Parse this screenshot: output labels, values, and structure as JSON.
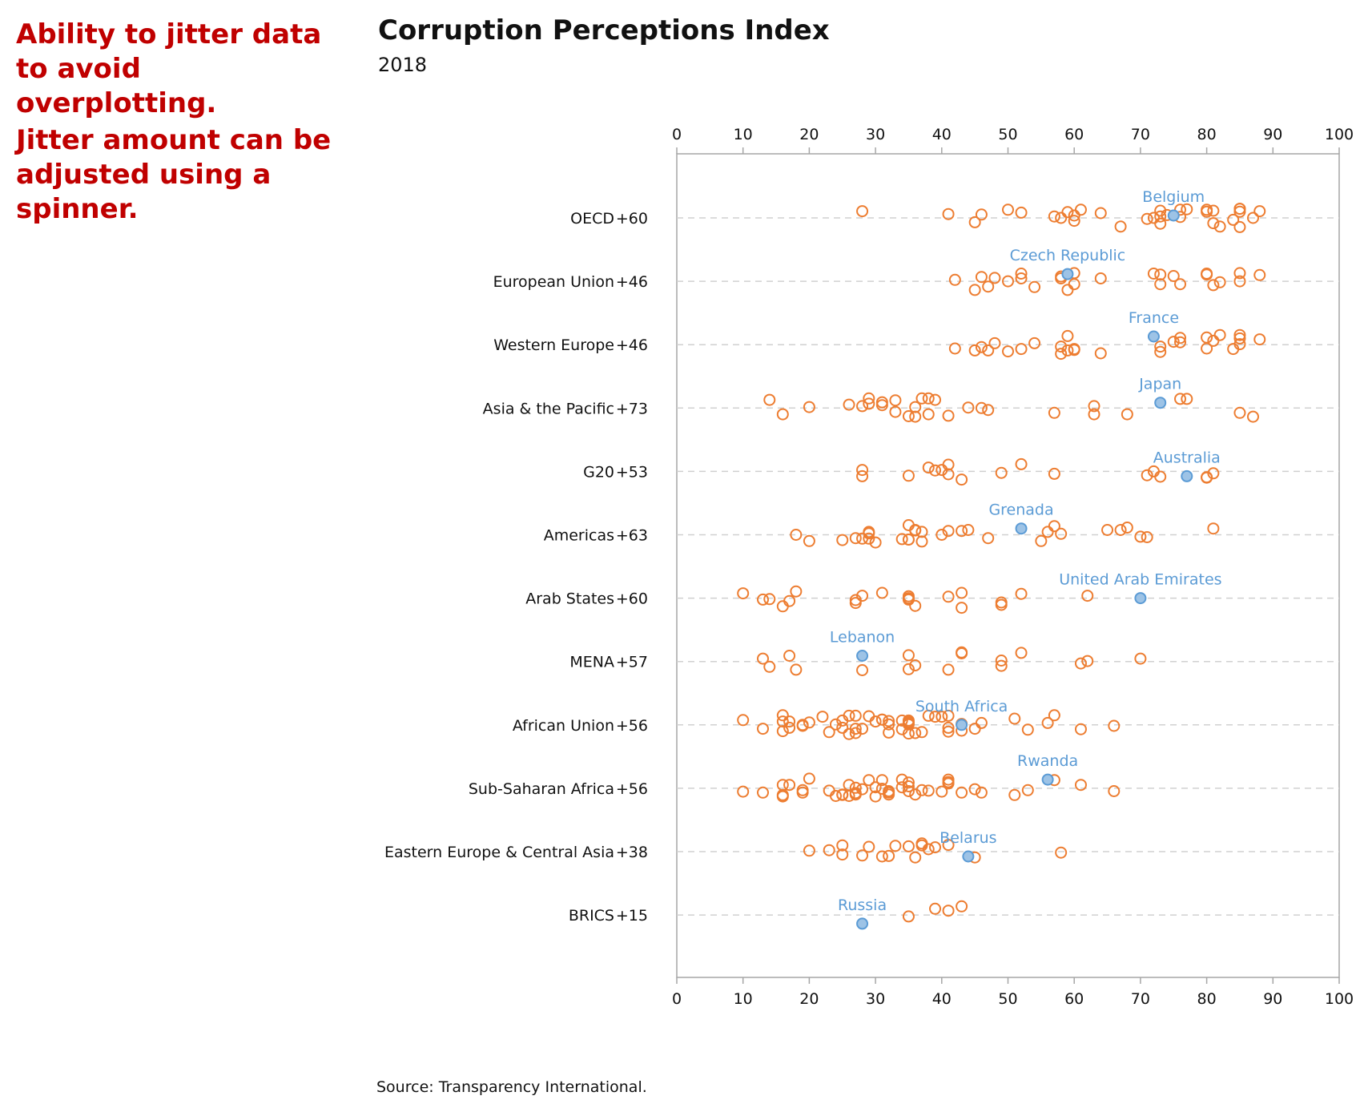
{
  "notes": {
    "note1": "Ability to jitter data\nto avoid overplotting.",
    "note2": "Jitter amount can be\nadjusted using a\nspinner."
  },
  "colors": {
    "dot_stroke": "#ed7d31",
    "highlight_fill": "#9dc3e6",
    "highlight_stroke": "#5b9bd5",
    "label": "#5b9bd5",
    "grid": "#d0d0d0",
    "axis": "#a6a6a6",
    "note": "#c00000"
  },
  "chart_data": {
    "type": "scatter",
    "title": "Corruption Perceptions Index",
    "subtitle": "2018",
    "source": "Source: Transparency International.",
    "xlim": [
      0,
      100
    ],
    "xticks": [
      0,
      10,
      20,
      30,
      40,
      50,
      60,
      70,
      80,
      90,
      100
    ],
    "jitter_note": "dots within each group are vertically jittered; jitter values below are in row units (-0.2 to 0.2)",
    "groups": [
      {
        "name": "OECD",
        "count": "+60",
        "highlight": {
          "label": "Belgium",
          "value": 75,
          "jitter": 0.05
        },
        "values": [
          28,
          41,
          45,
          46,
          50,
          52,
          57,
          58,
          59,
          60,
          60,
          61,
          64,
          67,
          71,
          72,
          73,
          73,
          73,
          74,
          76,
          76,
          77,
          80,
          80,
          81,
          81,
          82,
          84,
          85,
          85,
          85,
          85,
          87,
          88
        ],
        "jitter": [
          0.14,
          0.08,
          -0.09,
          0.07,
          0.17,
          0.11,
          0.03,
          0.0,
          0.12,
          0.05,
          -0.06,
          0.17,
          0.1,
          -0.18,
          -0.02,
          0.0,
          0.15,
          -0.12,
          0.03,
          0.06,
          0.17,
          0.02,
          0.18,
          0.17,
          0.13,
          0.15,
          -0.11,
          -0.18,
          -0.04,
          0.19,
          0.13,
          -0.19,
          0.19,
          0.0,
          0.14
        ]
      },
      {
        "name": "European Union",
        "count": "+46",
        "highlight": {
          "label": "Czech Republic",
          "value": 59,
          "jitter": 0.15
        },
        "values": [
          42,
          45,
          46,
          47,
          48,
          50,
          52,
          52,
          54,
          58,
          58,
          59,
          60,
          60,
          64,
          72,
          73,
          73,
          75,
          76,
          80,
          80,
          81,
          82,
          85,
          85,
          88
        ],
        "jitter": [
          0.03,
          -0.18,
          0.09,
          -0.11,
          0.07,
          0.0,
          0.16,
          0.06,
          -0.12,
          0.1,
          0.06,
          -0.18,
          0.17,
          -0.06,
          0.06,
          0.16,
          0.14,
          -0.06,
          0.11,
          -0.06,
          0.16,
          0.14,
          -0.08,
          -0.02,
          0.17,
          0.0,
          0.13
        ]
      },
      {
        "name": "Western Europe",
        "count": "+46",
        "highlight": {
          "label": "France",
          "value": 72,
          "jitter": 0.17
        },
        "values": [
          42,
          45,
          46,
          47,
          48,
          50,
          52,
          54,
          58,
          58,
          59,
          59,
          60,
          60,
          64,
          73,
          73,
          75,
          76,
          76,
          80,
          80,
          81,
          82,
          84,
          85,
          85,
          85,
          88
        ],
        "jitter": [
          -0.08,
          -0.12,
          -0.05,
          -0.12,
          0.03,
          -0.14,
          -0.09,
          0.03,
          -0.19,
          -0.04,
          -0.12,
          0.18,
          -0.11,
          -0.09,
          -0.18,
          -0.15,
          -0.04,
          0.06,
          0.05,
          0.14,
          0.15,
          -0.08,
          0.08,
          0.2,
          -0.09,
          0.2,
          0.13,
          0.01,
          0.11
        ]
      },
      {
        "name": "Asia & the Pacific",
        "count": "+73",
        "highlight": {
          "label": "Japan",
          "value": 73,
          "jitter": 0.11
        },
        "values": [
          14,
          16,
          20,
          26,
          28,
          29,
          29,
          31,
          31,
          33,
          33,
          35,
          36,
          36,
          37,
          38,
          38,
          39,
          41,
          44,
          46,
          47,
          57,
          63,
          63,
          68,
          76,
          77,
          85,
          87
        ],
        "jitter": [
          0.17,
          -0.13,
          0.02,
          0.07,
          0.04,
          0.09,
          0.2,
          0.12,
          0.06,
          0.16,
          -0.08,
          -0.17,
          0.02,
          -0.18,
          0.2,
          -0.13,
          0.2,
          0.17,
          -0.16,
          0.01,
          0.0,
          -0.04,
          -0.1,
          0.04,
          -0.13,
          -0.13,
          0.19,
          0.19,
          -0.1,
          -0.18
        ]
      },
      {
        "name": "G20",
        "count": "+53",
        "highlight": {
          "label": "Australia",
          "value": 77,
          "jitter": -0.1
        },
        "values": [
          28,
          28,
          35,
          38,
          39,
          40,
          41,
          41,
          43,
          49,
          52,
          57,
          71,
          72,
          73,
          80,
          80,
          81
        ],
        "jitter": [
          0.03,
          -0.1,
          -0.09,
          0.08,
          0.02,
          0.03,
          0.14,
          -0.06,
          -0.17,
          -0.03,
          0.15,
          -0.05,
          -0.08,
          0.0,
          -0.11,
          -0.13,
          -0.12,
          -0.04
        ]
      },
      {
        "name": "Americas",
        "count": "+63",
        "highlight": {
          "label": "Grenada",
          "value": 52,
          "jitter": 0.13
        },
        "values": [
          18,
          20,
          25,
          27,
          28,
          29,
          29,
          29,
          30,
          34,
          35,
          35,
          35,
          36,
          36,
          37,
          37,
          40,
          41,
          43,
          44,
          47,
          55,
          56,
          57,
          58,
          65,
          67,
          68,
          70,
          71,
          81
        ],
        "jitter": [
          0.0,
          -0.13,
          -0.11,
          -0.07,
          -0.08,
          0.06,
          0.03,
          -0.08,
          -0.16,
          -0.09,
          0.2,
          -0.1,
          -0.1,
          0.09,
          0.1,
          0.06,
          -0.14,
          0.0,
          0.08,
          0.08,
          0.1,
          -0.07,
          -0.13,
          0.06,
          0.18,
          0.02,
          0.1,
          0.1,
          0.15,
          -0.04,
          -0.05,
          0.13
        ]
      },
      {
        "name": "Arab States",
        "count": "+60",
        "highlight": {
          "label": "United Arab Emirates",
          "value": 70,
          "jitter": 0.0
        },
        "values": [
          10,
          13,
          14,
          17,
          16,
          18,
          27,
          27,
          28,
          31,
          35,
          35,
          35,
          36,
          41,
          43,
          43,
          49,
          49,
          52,
          62
        ],
        "jitter": [
          0.1,
          -0.03,
          -0.02,
          -0.06,
          -0.17,
          0.14,
          -0.1,
          -0.04,
          0.05,
          0.11,
          0.04,
          0.0,
          -0.03,
          -0.16,
          0.03,
          0.11,
          -0.2,
          -0.09,
          -0.14,
          0.09,
          0.05
        ]
      },
      {
        "name": "MENA",
        "count": "+57",
        "highlight": {
          "label": "Lebanon",
          "value": 28,
          "jitter": 0.12
        },
        "values": [
          13,
          14,
          17,
          18,
          28,
          35,
          35,
          36,
          41,
          43,
          43,
          49,
          49,
          52,
          61,
          62,
          70
        ],
        "jitter": [
          0.06,
          -0.11,
          0.12,
          -0.17,
          -0.18,
          0.13,
          -0.16,
          -0.08,
          -0.17,
          0.17,
          0.19,
          0.02,
          -0.09,
          0.18,
          -0.04,
          0.01,
          0.06
        ]
      },
      {
        "name": "African Union",
        "count": "+56",
        "highlight": {
          "label": "South Africa",
          "value": 43,
          "jitter": 0.0
        },
        "values": [
          10,
          13,
          16,
          16,
          16,
          17,
          17,
          19,
          19,
          20,
          22,
          23,
          24,
          25,
          25,
          26,
          26,
          27,
          27,
          27,
          28,
          29,
          30,
          31,
          31,
          32,
          32,
          32,
          34,
          34,
          35,
          35,
          35,
          35,
          35,
          36,
          37,
          38,
          39,
          40,
          41,
          41,
          41,
          43,
          43,
          45,
          46,
          51,
          53,
          56,
          57,
          61,
          66
        ],
        "jitter": [
          0.1,
          -0.08,
          0.2,
          0.07,
          -0.13,
          -0.06,
          0.07,
          0.0,
          -0.02,
          0.05,
          0.17,
          -0.15,
          0.01,
          0.09,
          -0.06,
          0.19,
          -0.19,
          -0.08,
          0.19,
          -0.17,
          -0.08,
          0.18,
          0.07,
          0.11,
          0.11,
          0.08,
          0.01,
          -0.16,
          0.09,
          -0.09,
          0.03,
          0.06,
          0.09,
          0.01,
          -0.18,
          -0.17,
          -0.15,
          0.19,
          0.17,
          0.17,
          0.19,
          -0.06,
          -0.14,
          -0.12,
          0.02,
          -0.08,
          0.04,
          0.13,
          -0.1,
          0.04,
          0.2,
          -0.09,
          -0.02
        ]
      },
      {
        "name": "Sub-Saharan Africa",
        "count": "+56",
        "highlight": {
          "label": "Rwanda",
          "value": 56,
          "jitter": 0.18
        },
        "values": [
          10,
          13,
          16,
          16,
          16,
          17,
          19,
          19,
          20,
          23,
          24,
          25,
          25,
          26,
          26,
          27,
          27,
          27,
          28,
          29,
          30,
          30,
          31,
          31,
          32,
          32,
          32,
          34,
          34,
          35,
          35,
          35,
          36,
          37,
          38,
          40,
          41,
          41,
          41,
          43,
          45,
          46,
          51,
          53,
          57,
          61,
          66
        ],
        "jitter": [
          -0.07,
          -0.09,
          -0.14,
          0.07,
          -0.17,
          0.07,
          -0.09,
          -0.04,
          0.2,
          -0.05,
          -0.16,
          -0.13,
          -0.14,
          0.07,
          -0.16,
          0.01,
          -0.13,
          -0.1,
          -0.02,
          0.17,
          0.02,
          -0.17,
          0.17,
          -0.01,
          -0.06,
          -0.13,
          -0.09,
          0.18,
          0.02,
          0.04,
          0.12,
          -0.06,
          -0.13,
          -0.04,
          -0.05,
          -0.07,
          0.18,
          0.1,
          0.13,
          -0.09,
          -0.02,
          -0.09,
          -0.14,
          -0.04,
          0.17,
          0.07,
          -0.06
        ]
      },
      {
        "name": "Eastern Europe & Central Asia",
        "count": "+38",
        "highlight": {
          "label": "Belarus",
          "value": 44,
          "jitter": -0.1
        },
        "values": [
          20,
          23,
          25,
          25,
          28,
          29,
          31,
          32,
          33,
          35,
          36,
          37,
          37,
          38,
          39,
          41,
          45,
          58
        ],
        "jitter": [
          0.02,
          0.03,
          0.13,
          -0.06,
          -0.08,
          0.1,
          -0.1,
          -0.09,
          0.12,
          0.11,
          -0.12,
          0.17,
          0.13,
          0.05,
          0.09,
          0.14,
          -0.12,
          -0.02
        ]
      },
      {
        "name": "BRICS",
        "count": "+15",
        "highlight": {
          "label": "Russia",
          "value": 28,
          "jitter": -0.18
        },
        "values": [
          35,
          39,
          41,
          43
        ],
        "jitter": [
          -0.03,
          0.13,
          0.09,
          0.18
        ]
      }
    ]
  }
}
